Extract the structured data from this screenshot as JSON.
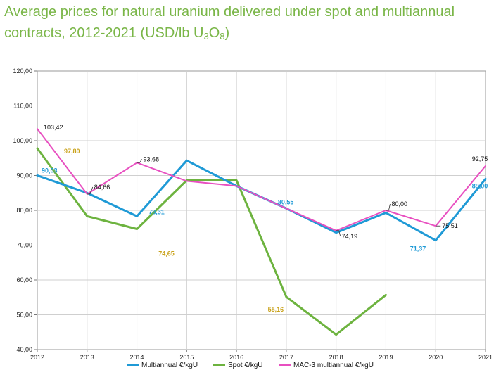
{
  "title": {
    "main": "Average prices for natural uranium delivered under spot and multiannual contracts, 2012-2021 (USD/lb U",
    "sub3": "3",
    "o": "O",
    "sub8": "8",
    "close": ")"
  },
  "colors": {
    "title": "#7ab648",
    "multiannual": "#1f9ad6",
    "spot": "#6db33f",
    "mac3": "#e84fc0",
    "spot_label": "#c9a21a",
    "multiannual_label": "#1f9ad6"
  },
  "chart_data": {
    "type": "line",
    "x": [
      "2012",
      "2013",
      "2014",
      "2015",
      "2016",
      "2017",
      "2018",
      "2019",
      "2020",
      "2021"
    ],
    "ylim": [
      40,
      120
    ],
    "yticks": [
      "40,00",
      "50,00",
      "60,00",
      "70,00",
      "80,00",
      "90,00",
      "100,00",
      "110,00",
      "120,00"
    ],
    "grid": true,
    "legend_position": "bottom",
    "series": [
      {
        "name": "Multiannual  €/kgU",
        "values": [
          90.03,
          85.0,
          78.31,
          94.3,
          87.0,
          80.55,
          73.6,
          79.3,
          71.37,
          89.0
        ]
      },
      {
        "name": "Spot €/kgU",
        "values": [
          97.8,
          78.3,
          74.65,
          88.6,
          88.6,
          55.16,
          44.3,
          55.7,
          null,
          null
        ]
      },
      {
        "name": "MAC-3 multiannual €/kgU",
        "values": [
          103.42,
          84.66,
          93.68,
          88.4,
          87.0,
          80.55,
          74.19,
          80.0,
          75.51,
          92.75
        ]
      }
    ],
    "data_labels": [
      {
        "series": 0,
        "index": 0,
        "text": "90,03"
      },
      {
        "series": 0,
        "index": 2,
        "text": "78,31"
      },
      {
        "series": 0,
        "index": 5,
        "text": "80,55"
      },
      {
        "series": 0,
        "index": 8,
        "text": "71,37"
      },
      {
        "series": 0,
        "index": 9,
        "text": "89,00"
      },
      {
        "series": 1,
        "index": 0,
        "text": "97,80"
      },
      {
        "series": 1,
        "index": 2,
        "text": "74,65"
      },
      {
        "series": 1,
        "index": 5,
        "text": "55,16"
      },
      {
        "series": 2,
        "index": 0,
        "text": "103,42"
      },
      {
        "series": 2,
        "index": 1,
        "text": "84,66"
      },
      {
        "series": 2,
        "index": 2,
        "text": "93,68"
      },
      {
        "series": 2,
        "index": 6,
        "text": "74,19"
      },
      {
        "series": 2,
        "index": 7,
        "text": "80,00"
      },
      {
        "series": 2,
        "index": 8,
        "text": "75,51"
      },
      {
        "series": 2,
        "index": 9,
        "text": "92,75"
      }
    ]
  }
}
